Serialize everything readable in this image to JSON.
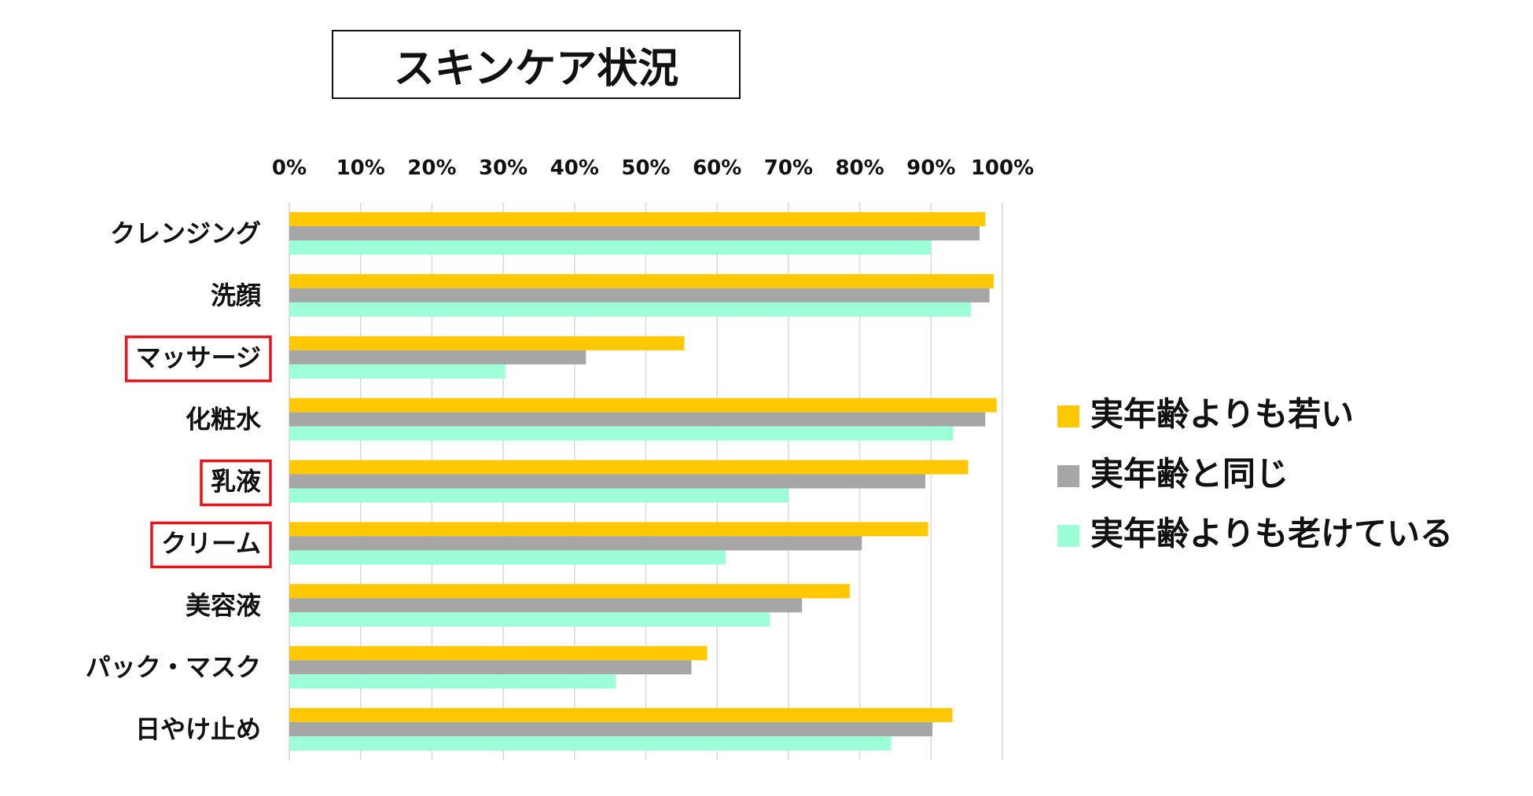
{
  "chart_data": {
    "type": "bar",
    "orientation": "horizontal",
    "title": "スキンケア状況",
    "xlim": [
      0,
      100
    ],
    "x_ticks": [
      "0%",
      "10%",
      "20%",
      "30%",
      "40%",
      "50%",
      "60%",
      "70%",
      "80%",
      "90%",
      "100%"
    ],
    "categories": [
      "クレンジング",
      "洗顔",
      "マッサージ",
      "化粧水",
      "乳液",
      "クリーム",
      "美容液",
      "パック・マスク",
      "日やけ止め"
    ],
    "highlighted_categories": [
      "マッサージ",
      "乳液",
      "クリーム"
    ],
    "series": [
      {
        "name": "実年齢よりも若い",
        "color": "#ffc800",
        "values": [
          97.6,
          98.8,
          55.4,
          99.2,
          95.2,
          89.6,
          78.6,
          58.6,
          93
        ]
      },
      {
        "name": "実年齢と同じ",
        "color": "#a6a6a6",
        "values": [
          96.8,
          98.2,
          41.6,
          97.6,
          89.2,
          80.3,
          71.9,
          56.4,
          90.2
        ]
      },
      {
        "name": "実年齢よりも老けている",
        "color": "#9dffd8",
        "values": [
          90,
          95.6,
          30.3,
          93.1,
          70,
          61.2,
          67.4,
          45.8,
          84.4
        ]
      }
    ],
    "grid": true,
    "legend_position": "right"
  }
}
